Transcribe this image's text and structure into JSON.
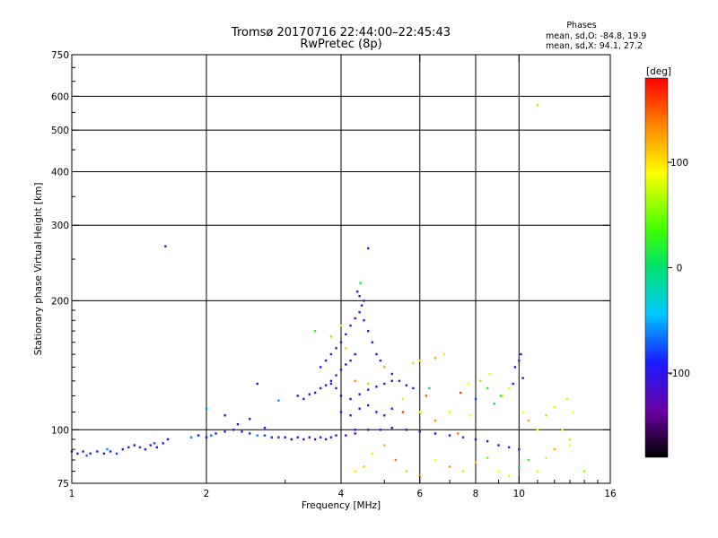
{
  "chart_data": {
    "type": "scatter",
    "title": "Tromsø 20170716 22:44:00–22:45:43",
    "subtitle": "RwPretec (8p)",
    "info": {
      "heading": "Phases",
      "line_o": "mean, sd,O: -84.8, 19.9",
      "line_x": "mean, sd,X:  94.1, 27.2"
    },
    "xlabel": "Frequency [MHz]",
    "ylabel": "Stationary phase Virtual Height [km]",
    "x_scale": "log",
    "y_scale": "log",
    "xlim": [
      1,
      16
    ],
    "ylim": [
      75,
      750
    ],
    "x_ticks": [
      {
        "value": 1,
        "label": "1"
      },
      {
        "value": 2,
        "label": "2"
      },
      {
        "value": 4,
        "label": "4"
      },
      {
        "value": 6,
        "label": "6"
      },
      {
        "value": 8,
        "label": "8"
      },
      {
        "value": 10,
        "label": "10"
      },
      {
        "value": 16,
        "label": "16"
      }
    ],
    "y_ticks": [
      {
        "value": 75,
        "label": "75"
      },
      {
        "value": 100,
        "label": "100"
      },
      {
        "value": 200,
        "label": "200"
      },
      {
        "value": 300,
        "label": "300"
      },
      {
        "value": 400,
        "label": "400"
      },
      {
        "value": 500,
        "label": "500"
      },
      {
        "value": 600,
        "label": "600"
      },
      {
        "value": 750,
        "label": "750"
      }
    ],
    "x_grid": [
      2,
      4,
      6,
      8,
      10
    ],
    "y_grid": [
      100,
      200,
      300,
      400,
      500,
      600
    ],
    "colorbar": {
      "label": "[deg]",
      "range": [
        -180,
        180
      ],
      "ticks": [
        {
          "value": 100,
          "label": "100"
        },
        {
          "value": 0,
          "label": "0"
        },
        {
          "value": -100,
          "label": "-100"
        }
      ]
    },
    "series": [
      {
        "points": [
          [
            1.0,
            89,
            -110
          ],
          [
            1.03,
            88,
            -95
          ],
          [
            1.06,
            89,
            -120
          ],
          [
            1.1,
            88,
            -100
          ],
          [
            1.14,
            89,
            -90
          ],
          [
            1.18,
            88,
            -115
          ],
          [
            1.22,
            89,
            -100
          ],
          [
            1.26,
            88,
            -80
          ],
          [
            1.3,
            90,
            -105
          ],
          [
            1.34,
            91,
            -95
          ],
          [
            1.38,
            92,
            -110
          ],
          [
            1.42,
            91,
            -85
          ],
          [
            1.46,
            90,
            -100
          ],
          [
            1.5,
            92,
            -115
          ],
          [
            1.55,
            91,
            -90
          ],
          [
            1.6,
            93,
            -105
          ],
          [
            1.64,
            95,
            -100
          ],
          [
            1.08,
            87,
            -70
          ],
          [
            1.2,
            90,
            -60
          ],
          [
            1.53,
            93,
            -75
          ],
          [
            1.62,
            268,
            -120
          ],
          [
            1.85,
            96,
            -60
          ],
          [
            1.92,
            97,
            -90
          ],
          [
            2.0,
            96,
            -100
          ],
          [
            2.05,
            97,
            -70
          ],
          [
            2.1,
            98,
            -110
          ],
          [
            2.2,
            99,
            -95
          ],
          [
            2.3,
            100,
            -90
          ],
          [
            2.4,
            99,
            -100
          ],
          [
            2.5,
            98,
            -85
          ],
          [
            2.6,
            97,
            -60
          ],
          [
            2.7,
            97,
            -80
          ],
          [
            2.8,
            96,
            -95
          ],
          [
            2.9,
            96,
            -105
          ],
          [
            3.0,
            96,
            -110
          ],
          [
            3.1,
            95,
            -100
          ],
          [
            3.2,
            96,
            -95
          ],
          [
            3.3,
            95,
            -120
          ],
          [
            3.4,
            96,
            -100
          ],
          [
            3.5,
            95,
            -110
          ],
          [
            3.6,
            96,
            -90
          ],
          [
            3.7,
            95,
            -100
          ],
          [
            3.8,
            96,
            -105
          ],
          [
            3.9,
            97,
            -100
          ],
          [
            4.1,
            97,
            -110
          ],
          [
            4.3,
            98,
            -120
          ],
          [
            2.35,
            103,
            -100
          ],
          [
            2.5,
            106,
            -110
          ],
          [
            2.7,
            101,
            -90
          ],
          [
            2.2,
            108,
            -100
          ],
          [
            2.0,
            112,
            -60
          ],
          [
            2.6,
            128,
            -100
          ],
          [
            2.9,
            117,
            -60
          ],
          [
            3.2,
            120,
            -110
          ],
          [
            3.3,
            118,
            -100
          ],
          [
            3.4,
            121,
            -120
          ],
          [
            3.5,
            122,
            -110
          ],
          [
            3.6,
            125,
            -100
          ],
          [
            3.7,
            127,
            -115
          ],
          [
            3.8,
            130,
            -110
          ],
          [
            3.9,
            134,
            -100
          ],
          [
            4.0,
            138,
            -110
          ],
          [
            4.1,
            142,
            -120
          ],
          [
            4.2,
            145,
            -110
          ],
          [
            4.3,
            150,
            -100
          ],
          [
            3.6,
            140,
            -100
          ],
          [
            3.7,
            145,
            -110
          ],
          [
            3.8,
            150,
            -120
          ],
          [
            3.9,
            155,
            -115
          ],
          [
            4.0,
            160,
            -105
          ],
          [
            4.1,
            167,
            -110
          ],
          [
            4.2,
            175,
            -115
          ],
          [
            4.3,
            182,
            -120
          ],
          [
            4.4,
            188,
            -110
          ],
          [
            4.45,
            195,
            -115
          ],
          [
            4.5,
            200,
            -120
          ],
          [
            4.4,
            205,
            -110
          ],
          [
            4.35,
            210,
            -100
          ],
          [
            4.42,
            220,
            10
          ],
          [
            4.5,
            180,
            -110
          ],
          [
            4.6,
            170,
            -100
          ],
          [
            4.7,
            160,
            -110
          ],
          [
            4.8,
            150,
            -105
          ],
          [
            4.9,
            145,
            -110
          ],
          [
            5.0,
            140,
            -100
          ],
          [
            5.2,
            135,
            -110
          ],
          [
            5.4,
            130,
            -115
          ],
          [
            5.6,
            127,
            -105
          ],
          [
            5.8,
            125,
            -100
          ],
          [
            3.8,
            128,
            -100
          ],
          [
            3.9,
            125,
            -120
          ],
          [
            4.0,
            120,
            -110
          ],
          [
            4.2,
            118,
            -100
          ],
          [
            4.4,
            121,
            -105
          ],
          [
            4.6,
            124,
            -110
          ],
          [
            4.8,
            126,
            -100
          ],
          [
            5.0,
            128,
            -110
          ],
          [
            5.2,
            130,
            -100
          ],
          [
            4.0,
            110,
            -100
          ],
          [
            4.2,
            108,
            -120
          ],
          [
            4.4,
            112,
            -110
          ],
          [
            4.6,
            114,
            -100
          ],
          [
            4.8,
            110,
            -100
          ],
          [
            5.0,
            108,
            -110
          ],
          [
            5.2,
            112,
            -105
          ],
          [
            4.3,
            100,
            -100
          ],
          [
            4.6,
            100,
            -110
          ],
          [
            4.9,
            100,
            -100
          ],
          [
            5.2,
            101,
            -120
          ],
          [
            5.6,
            100,
            -110
          ],
          [
            6.0,
            99,
            -100
          ],
          [
            6.5,
            98,
            -90
          ],
          [
            7.0,
            97,
            -100
          ],
          [
            7.5,
            96,
            -80
          ],
          [
            8.0,
            95,
            -100
          ],
          [
            8.5,
            94,
            -100
          ],
          [
            9.0,
            92,
            -110
          ],
          [
            9.5,
            91,
            -100
          ],
          [
            10.0,
            90,
            -110
          ],
          [
            4.6,
            265,
            -110
          ],
          [
            3.5,
            170,
            20
          ],
          [
            3.8,
            165,
            50
          ],
          [
            4.0,
            175,
            80
          ],
          [
            4.1,
            155,
            110
          ],
          [
            4.3,
            130,
            130
          ],
          [
            4.6,
            128,
            60
          ],
          [
            5.0,
            140,
            110
          ],
          [
            5.5,
            118,
            70
          ],
          [
            6.0,
            110,
            90
          ],
          [
            6.5,
            105,
            130
          ],
          [
            7.0,
            110,
            100
          ],
          [
            7.3,
            98,
            140
          ],
          [
            7.8,
            108,
            90
          ],
          [
            6.0,
            145,
            100
          ],
          [
            6.5,
            147,
            120
          ],
          [
            6.8,
            150,
            100
          ],
          [
            5.8,
            143,
            60
          ],
          [
            6.2,
            120,
            150
          ],
          [
            7.7,
            128,
            90
          ],
          [
            8.2,
            130,
            60
          ],
          [
            8.5,
            125,
            20
          ],
          [
            8.8,
            115,
            0
          ],
          [
            9.2,
            120,
            100
          ],
          [
            9.5,
            125,
            80
          ],
          [
            10.2,
            110,
            90
          ],
          [
            10.5,
            105,
            120
          ],
          [
            11.0,
            100,
            90
          ],
          [
            11.5,
            108,
            110
          ],
          [
            12.0,
            113,
            80
          ],
          [
            12.5,
            100,
            100
          ],
          [
            13.0,
            95,
            70
          ],
          [
            13.2,
            110,
            90
          ],
          [
            12.8,
            118,
            100
          ],
          [
            4.3,
            80,
            100
          ],
          [
            4.5,
            82,
            110
          ],
          [
            4.7,
            88,
            80
          ],
          [
            5.0,
            92,
            120
          ],
          [
            5.3,
            85,
            140
          ],
          [
            5.6,
            80,
            60
          ],
          [
            6.0,
            78,
            120
          ],
          [
            6.5,
            85,
            90
          ],
          [
            7.0,
            82,
            130
          ],
          [
            7.5,
            80,
            70
          ],
          [
            8.0,
            84,
            110
          ],
          [
            8.5,
            86,
            50
          ],
          [
            9.0,
            80,
            90
          ],
          [
            9.5,
            78,
            100
          ],
          [
            10.0,
            82,
            0
          ],
          [
            10.5,
            85,
            30
          ],
          [
            11.0,
            80,
            80
          ],
          [
            11.5,
            86,
            100
          ],
          [
            12.0,
            90,
            120
          ],
          [
            13.0,
            92,
            90
          ],
          [
            14.0,
            80,
            60
          ],
          [
            10.0,
            145,
            -110
          ],
          [
            10.1,
            150,
            -120
          ],
          [
            9.8,
            140,
            -100
          ],
          [
            9.7,
            128,
            -100
          ],
          [
            10.2,
            132,
            -110
          ],
          [
            8.6,
            135,
            90
          ],
          [
            9.1,
            120,
            20
          ],
          [
            8.0,
            118,
            -80
          ],
          [
            7.4,
            122,
            160
          ],
          [
            6.3,
            125,
            -10
          ],
          [
            5.5,
            110,
            160
          ],
          [
            11.0,
            572,
            60
          ]
        ]
      }
    ]
  }
}
